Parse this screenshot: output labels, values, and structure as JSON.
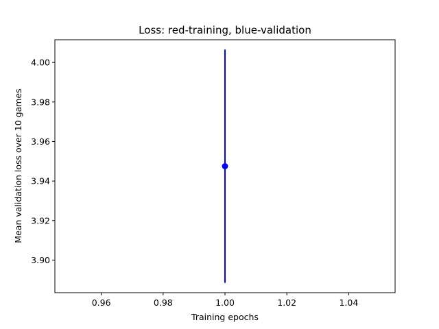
{
  "chart_data": {
    "type": "scatter",
    "title": "Loss: red-training, blue-validation",
    "xlabel": "Training epochs",
    "ylabel": "Mean validation loss over 10 games",
    "xlim": [
      0.945,
      1.055
    ],
    "ylim": [
      3.8835,
      4.0115
    ],
    "xticks": [
      0.96,
      0.98,
      1.0,
      1.02,
      1.04
    ],
    "xtick_labels": [
      "0.96",
      "0.98",
      "1.00",
      "1.02",
      "1.04"
    ],
    "yticks": [
      3.9,
      3.92,
      3.94,
      3.96,
      3.98,
      4.0
    ],
    "ytick_labels": [
      "3.90",
      "3.92",
      "3.94",
      "3.96",
      "3.98",
      "4.00"
    ],
    "grid": false,
    "series": [
      {
        "color": "#0000ff",
        "points": [
          {
            "x": 1.0,
            "y": 3.9475,
            "yerr_low": 3.8885,
            "yerr_high": 4.0065
          }
        ]
      }
    ]
  }
}
